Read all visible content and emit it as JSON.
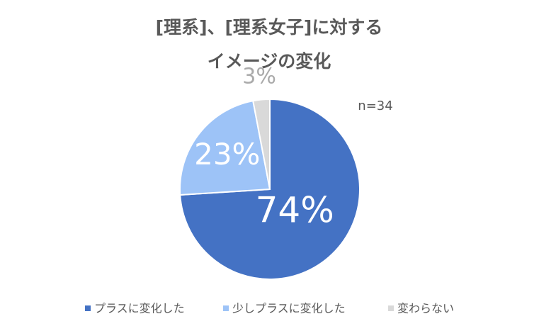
{
  "chart_data": {
    "type": "pie",
    "title": [
      "[理系]、[理系女子]に対する",
      "イメージの変化"
    ],
    "annotation": "n=34",
    "categories": [
      "プラスに変化した",
      "少しプラスに変化した",
      "変わらない"
    ],
    "values": [
      74,
      23,
      3
    ],
    "value_labels": [
      "74%",
      "23%",
      "3%"
    ],
    "colors": [
      "#4472c4",
      "#9dc3f7",
      "#d9d9d9"
    ],
    "legend": "bottom"
  }
}
